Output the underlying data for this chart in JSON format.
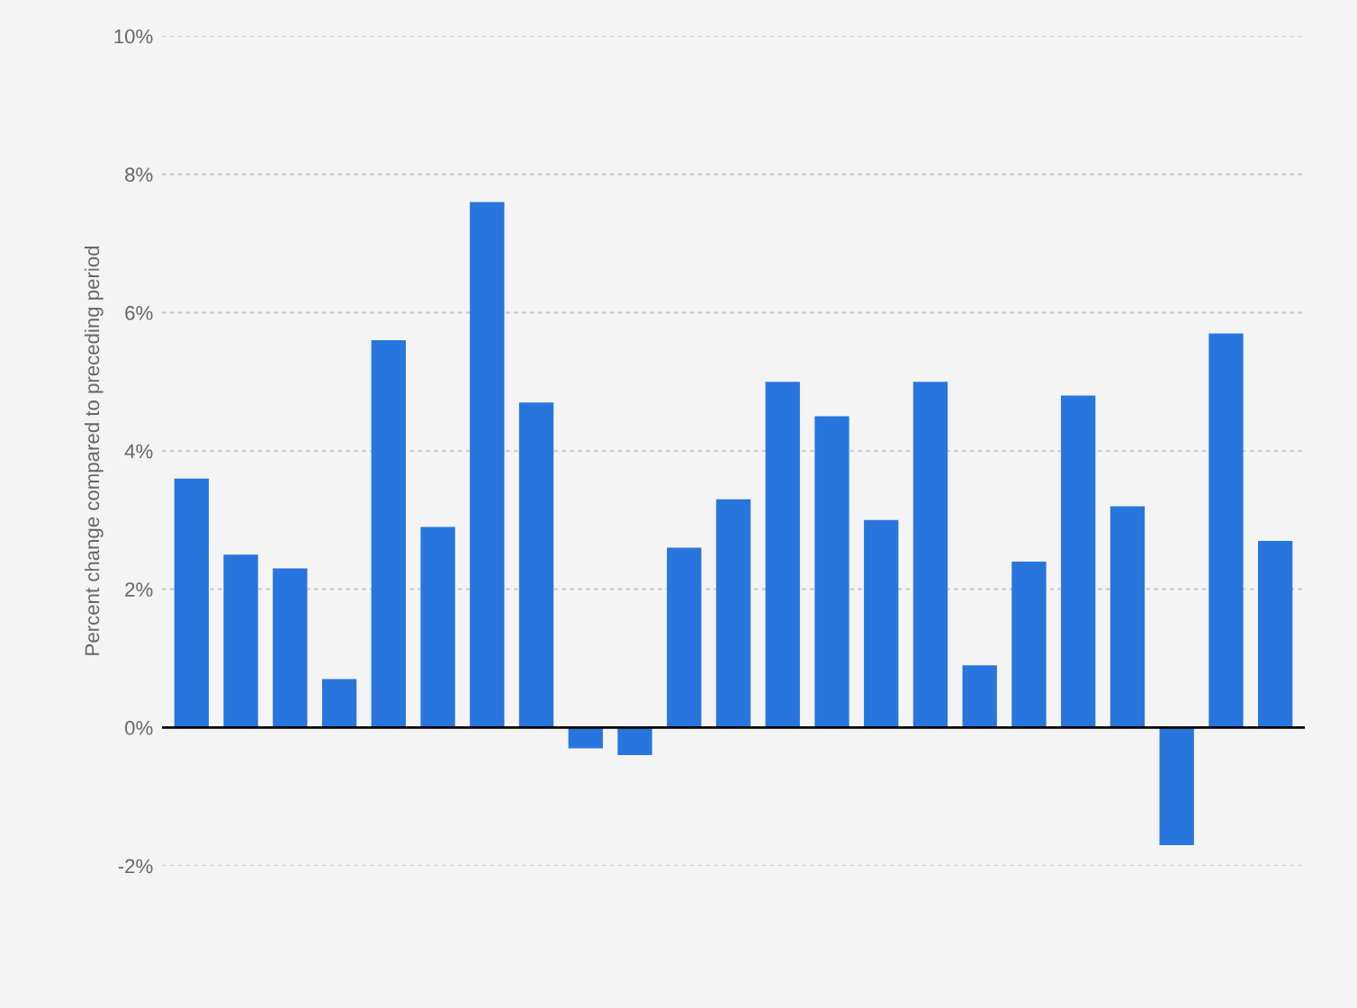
{
  "chart_data": {
    "type": "bar",
    "ylabel": "Percent change compared to preceding period",
    "categories": [
      null,
      null,
      null,
      null,
      null,
      null,
      null,
      null,
      null,
      null,
      null,
      null,
      null,
      null,
      null,
      null,
      null,
      null,
      null,
      null,
      null,
      null,
      null
    ],
    "values": [
      3.6,
      2.5,
      2.3,
      0.7,
      5.6,
      2.9,
      7.6,
      4.7,
      -0.3,
      -0.4,
      2.6,
      3.3,
      5.0,
      4.5,
      3.0,
      5.0,
      0.9,
      2.4,
      4.8,
      3.2,
      -1.7,
      5.7,
      2.7
    ],
    "color": "#2876dd",
    "ylim": [
      -2,
      10
    ],
    "yticks": [
      {
        "value": -2,
        "label": "-2%"
      },
      {
        "value": 0,
        "label": "0%"
      },
      {
        "value": 2,
        "label": "2%"
      },
      {
        "value": 4,
        "label": "4%"
      },
      {
        "value": 6,
        "label": "6%"
      },
      {
        "value": 8,
        "label": "8%"
      },
      {
        "value": 10,
        "label": "10%"
      }
    ],
    "grid": "y",
    "ref_lines": [
      {
        "axis": "y",
        "value": 0,
        "color": "#000000"
      }
    ]
  }
}
